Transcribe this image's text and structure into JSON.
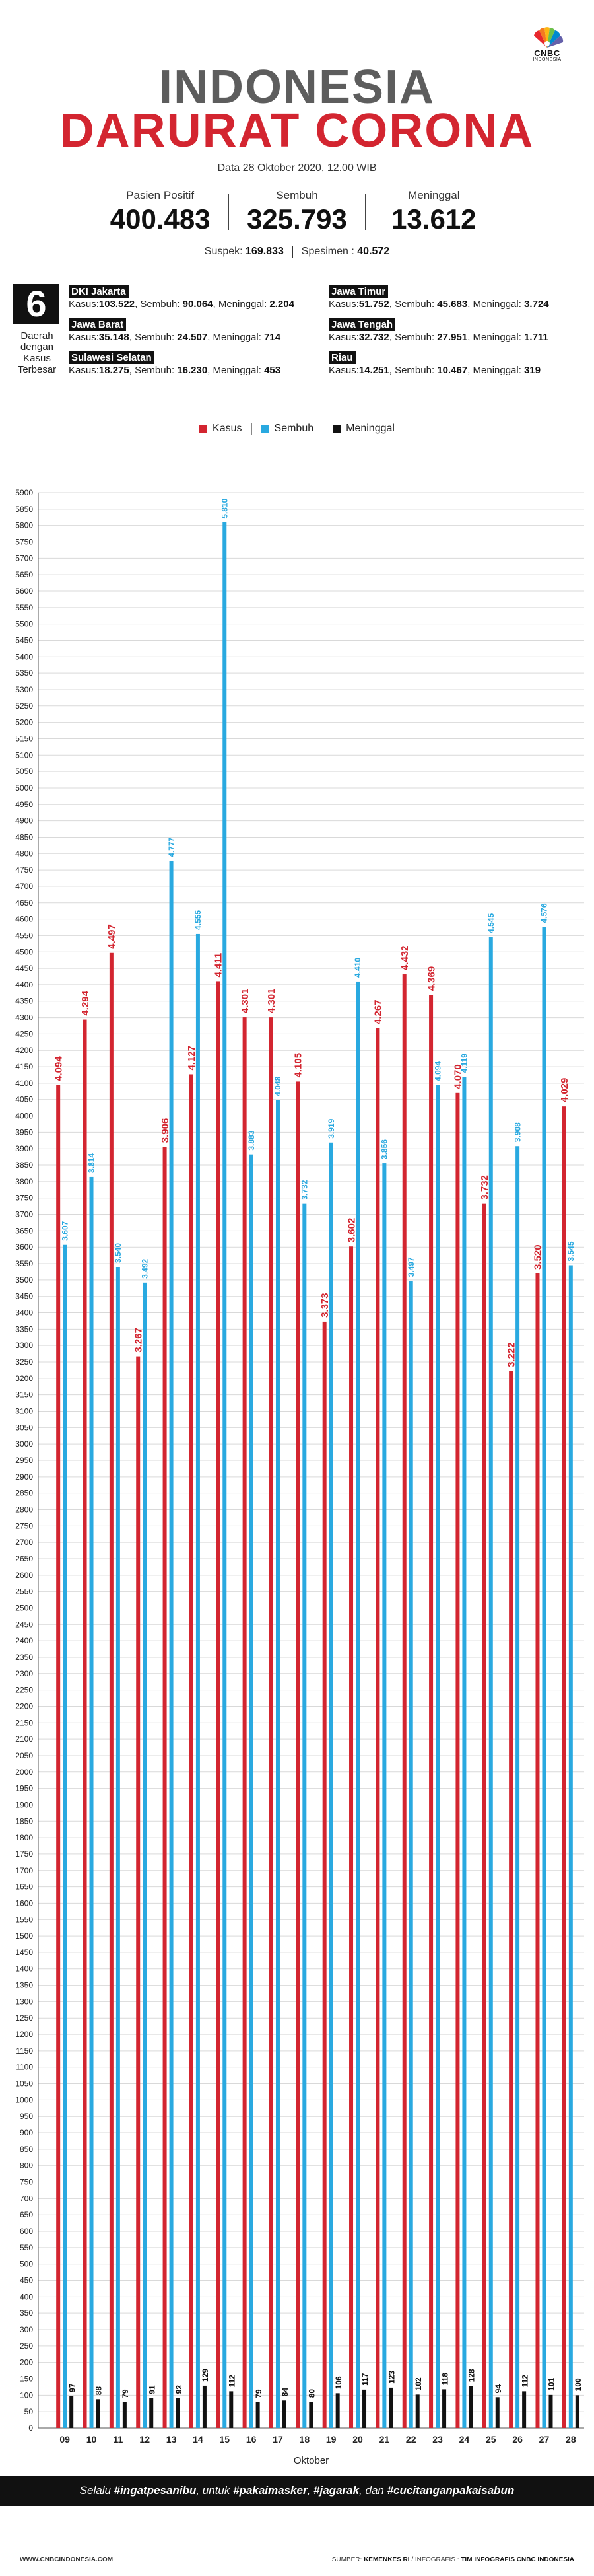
{
  "header": {
    "logo_brand": "CNBC",
    "logo_sub": "INDONESIA",
    "title_line1": "INDONESIA",
    "title_line2": "DARURAT CORONA",
    "date": "Data 28 Oktober 2020, 12.00 WIB"
  },
  "stats": {
    "positif_label": "Pasien Positif",
    "positif_value": "400.483",
    "sembuh_label": "Sembuh",
    "sembuh_value": "325.793",
    "meninggal_label": "Meninggal",
    "meninggal_value": "13.612"
  },
  "suspek": {
    "suspek_label": "Suspek:",
    "suspek_value": "169.833",
    "spesimen_label": "Spesimen :",
    "spesimen_value": "40.572"
  },
  "regions_panel": {
    "count": "6",
    "label": "Daerah dengan Kasus Terbesar",
    "regions": [
      {
        "name": "DKI Jakarta",
        "kasus_label": "Kasus:",
        "kasus": "103.522",
        "sembuh_label": ", Sembuh:",
        "sembuh": "90.064",
        "meninggal_label": ", Meninggal:",
        "meninggal": "2.204"
      },
      {
        "name": "Jawa Timur",
        "kasus_label": "Kasus:",
        "kasus": "51.752",
        "sembuh_label": ", Sembuh:",
        "sembuh": "45.683",
        "meninggal_label": ", Meninggal:",
        "meninggal": "3.724"
      },
      {
        "name": "Jawa Barat",
        "kasus_label": "Kasus:",
        "kasus": "35.148",
        "sembuh_label": ", Sembuh:",
        "sembuh": "24.507",
        "meninggal_label": ", Meninggal:",
        "meninggal": "714"
      },
      {
        "name": "Jawa Tengah",
        "kasus_label": "Kasus:",
        "kasus": "32.732",
        "sembuh_label": ", Sembuh:",
        "sembuh": "27.951",
        "meninggal_label": ", Meninggal:",
        "meninggal": "1.711"
      },
      {
        "name": "Sulawesi Selatan",
        "kasus_label": "Kasus:",
        "kasus": "18.275",
        "sembuh_label": ", Sembuh:",
        "sembuh": "16.230",
        "meninggal_label": ", Meninggal:",
        "meninggal": "453"
      },
      {
        "name": "Riau",
        "kasus_label": "Kasus:",
        "kasus": "14.251",
        "sembuh_label": ", Sembuh:",
        "sembuh": "10.467",
        "meninggal_label": ", Meninggal:",
        "meninggal": "319"
      }
    ]
  },
  "legend": {
    "kasus": "Kasus",
    "sembuh": "Sembuh",
    "meninggal": "Meninggal"
  },
  "colors": {
    "kasus": "#d32530",
    "sembuh": "#29a9e0",
    "meninggal": "#111111",
    "title_gray": "#5d5d5d"
  },
  "chart_data": {
    "type": "bar",
    "xlabel": "Oktober",
    "ylabel": "",
    "ylim": [
      0,
      5900
    ],
    "ytick_step": 50,
    "grid": true,
    "legend_position": "top",
    "categories": [
      "09",
      "10",
      "11",
      "12",
      "13",
      "14",
      "15",
      "16",
      "17",
      "18",
      "19",
      "20",
      "21",
      "22",
      "23",
      "24",
      "25",
      "26",
      "27",
      "28"
    ],
    "series": [
      {
        "name": "Kasus",
        "color": "#d32530",
        "values": [
          4094,
          4294,
          4497,
          3267,
          3906,
          4127,
          4411,
          4301,
          4301,
          4105,
          3373,
          3602,
          4267,
          4432,
          4369,
          4070,
          3732,
          3222,
          3520,
          4029
        ],
        "labels": [
          "4.094",
          "4.294",
          "4.497",
          "3.267",
          "3.906",
          "4.127",
          "4.411",
          "4.301",
          "4.301",
          "4.105",
          "3.373",
          "3.602",
          "4.267",
          "4.432",
          "4.369",
          "4.070",
          "3.732",
          "3.222",
          "3.520",
          "4.029"
        ]
      },
      {
        "name": "Sembuh",
        "color": "#29a9e0",
        "values": [
          3607,
          3814,
          3540,
          3492,
          4777,
          4555,
          5810,
          3883,
          4048,
          3732,
          3919,
          4410,
          3856,
          3497,
          4094,
          4119,
          4545,
          3908,
          4576,
          3545
        ],
        "labels": [
          "3.607",
          "3.814",
          "3.540",
          "3.492",
          "4.777",
          "4.555",
          "5.810",
          "3.883",
          "4.048",
          "3.732",
          "3.919",
          "4.410",
          "3.856",
          "3.497",
          "4.094",
          "4.119",
          "4.545",
          "3.908",
          "4.576",
          "3.545"
        ]
      },
      {
        "name": "Meninggal",
        "color": "#111111",
        "values": [
          97,
          88,
          79,
          91,
          92,
          129,
          112,
          79,
          84,
          80,
          106,
          117,
          123,
          102,
          118,
          128,
          94,
          112,
          101,
          100
        ],
        "labels": [
          "97",
          "88",
          "79",
          "91",
          "92",
          "129",
          "112",
          "79",
          "84",
          "80",
          "106",
          "117",
          "123",
          "102",
          "118",
          "128",
          "94",
          "112",
          "101",
          "100"
        ]
      }
    ]
  },
  "footer": {
    "tagline_pre": "Selalu ",
    "tag1": "#ingatpesanibu",
    "tagline_mid1": ", untuk ",
    "tag2": "#pakaimasker",
    "tagline_mid2": ", ",
    "tag3": "#jagarak",
    "tagline_mid3": ", dan ",
    "tag4": "#cucitanganpakaisabun",
    "website": "WWW.CNBCINDONESIA.COM",
    "source_label": "SUMBER:",
    "source_value": "KEMENKES RI",
    "credit_label": "/ INFOGRAFIS :",
    "credit_value": "TIM INFOGRAFIS CNBC INDONESIA"
  }
}
